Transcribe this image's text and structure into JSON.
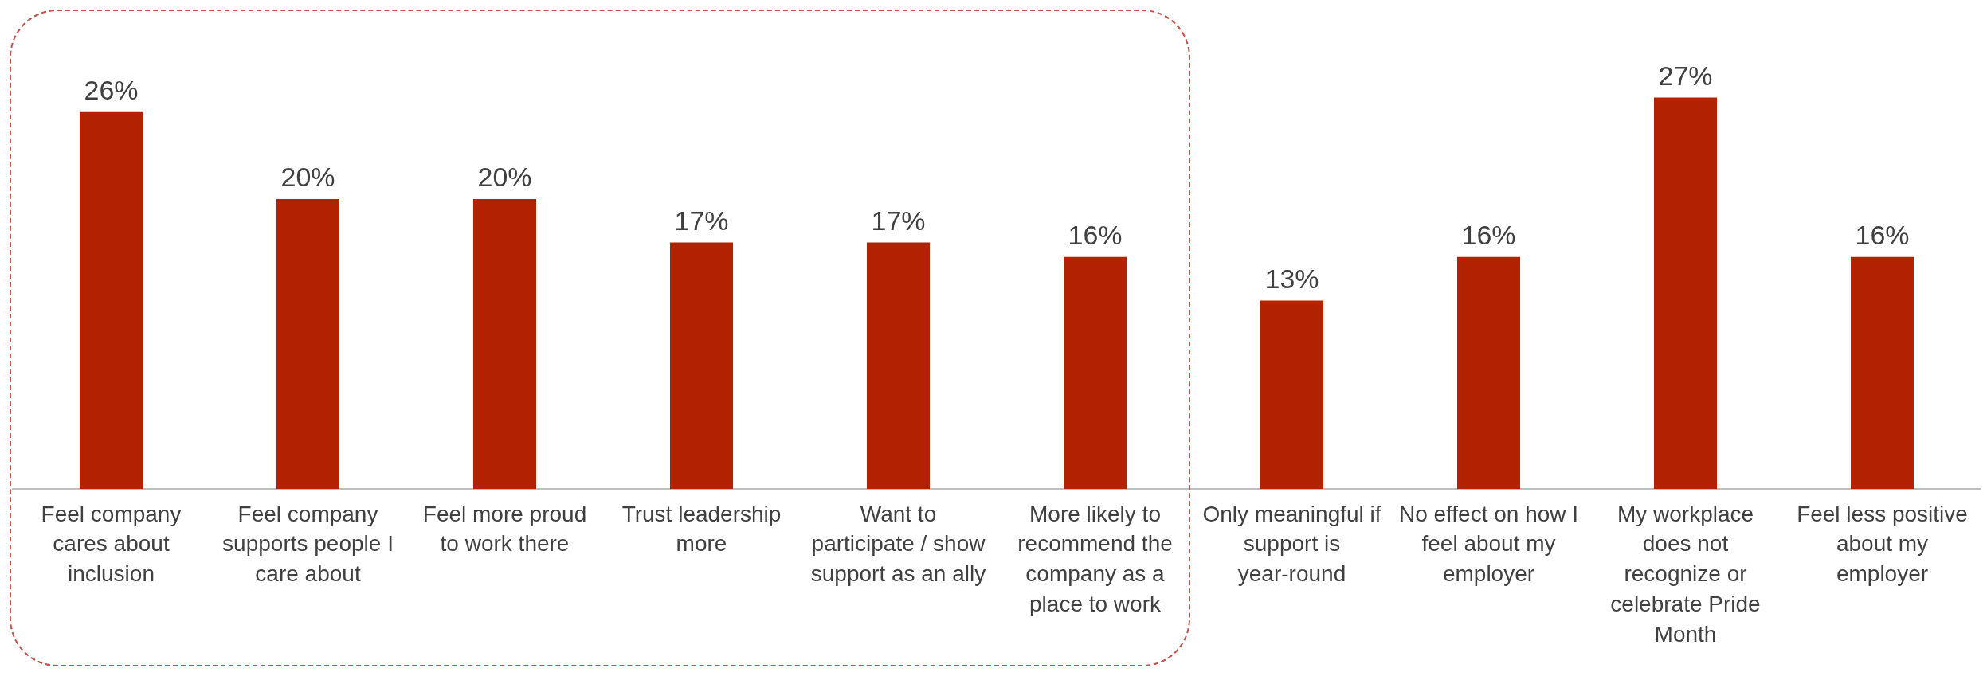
{
  "chart_data": {
    "type": "bar",
    "categories": [
      "Feel company cares about inclusion",
      "Feel company supports people I care about",
      "Feel more proud to work there",
      "Trust leadership more",
      "Want to participate / show support as an ally",
      "More likely to recommend the company as a place to work",
      "Only meaningful if support is year-round",
      "No effect on how I feel about my employer",
      "My workplace does not recognize or celebrate Pride Month",
      "Feel less positive about my employer"
    ],
    "values": [
      26,
      20,
      20,
      17,
      17,
      16,
      13,
      16,
      27,
      16
    ],
    "color": "#b22200",
    "value_labels": [
      "26%",
      "20%",
      "20%",
      "17%",
      "17%",
      "16%",
      "13%",
      "16%",
      "27%",
      "16%"
    ],
    "grid": false,
    "legend": false,
    "tick_labels": "x"
  }
}
